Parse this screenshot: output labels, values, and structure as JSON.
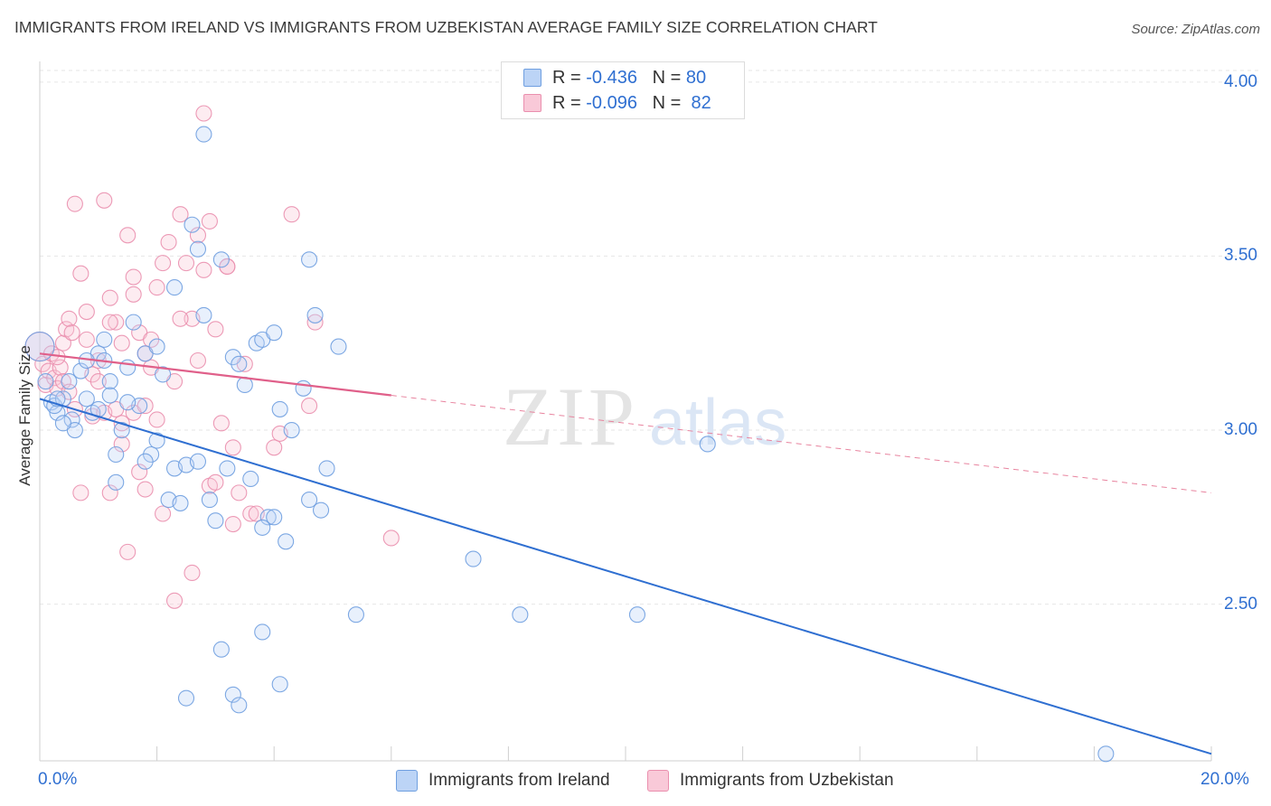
{
  "title": "IMMIGRANTS FROM IRELAND VS IMMIGRANTS FROM UZBEKISTAN AVERAGE FAMILY SIZE CORRELATION CHART",
  "source": "Source: ZipAtlas.com",
  "watermark": {
    "zip": "ZIP",
    "atlas": "atlas"
  },
  "legend": {
    "r_label": "R =",
    "n_label": "N =",
    "rows": [
      {
        "r": "-0.436",
        "n": "80",
        "color": "#6f9fe0"
      },
      {
        "r": "-0.096",
        "n": "82",
        "color": "#ea8fae"
      }
    ]
  },
  "chart_data": {
    "type": "scatter",
    "title": "IMMIGRANTS FROM IRELAND VS IMMIGRANTS FROM UZBEKISTAN AVERAGE FAMILY SIZE CORRELATION CHART",
    "xlabel": "",
    "ylabel": "Average Family Size",
    "xlim": [
      0,
      20
    ],
    "ylim": [
      2.05,
      4.08
    ],
    "x_tick_labels": [
      "0.0%",
      "20.0%"
    ],
    "y_ticks": [
      2.5,
      3.0,
      3.5,
      4.0
    ],
    "y_tick_labels": [
      "2.50",
      "3.00",
      "3.50",
      "4.00"
    ],
    "grid": true,
    "legend_position": "bottom",
    "series": [
      {
        "name": "Immigrants from Ireland",
        "color": "#6f9fe0",
        "trend": {
          "x": [
            0.0,
            20.0
          ],
          "y": [
            3.09,
            2.07
          ]
        },
        "points": [
          [
            0.0,
            3.24
          ],
          [
            0.1,
            3.14
          ],
          [
            0.2,
            3.08
          ],
          [
            0.3,
            3.05
          ],
          [
            0.25,
            3.07
          ],
          [
            0.4,
            3.09
          ],
          [
            0.5,
            3.14
          ],
          [
            0.55,
            3.03
          ],
          [
            0.7,
            3.17
          ],
          [
            0.8,
            3.09
          ],
          [
            0.9,
            3.05
          ],
          [
            1.0,
            3.22
          ],
          [
            1.1,
            3.2
          ],
          [
            1.2,
            3.14
          ],
          [
            1.3,
            2.93
          ],
          [
            1.4,
            3.0
          ],
          [
            1.5,
            3.18
          ],
          [
            1.6,
            3.31
          ],
          [
            1.7,
            3.07
          ],
          [
            1.8,
            3.22
          ],
          [
            1.9,
            2.93
          ],
          [
            2.0,
            2.97
          ],
          [
            2.1,
            3.16
          ],
          [
            2.2,
            2.8
          ],
          [
            2.3,
            2.89
          ],
          [
            2.4,
            2.79
          ],
          [
            2.5,
            2.9
          ],
          [
            2.6,
            3.59
          ],
          [
            2.7,
            3.52
          ],
          [
            2.8,
            3.33
          ],
          [
            2.9,
            2.8
          ],
          [
            3.0,
            2.74
          ],
          [
            3.1,
            3.49
          ],
          [
            3.2,
            2.89
          ],
          [
            3.3,
            3.21
          ],
          [
            3.4,
            3.19
          ],
          [
            3.5,
            3.13
          ],
          [
            3.6,
            2.86
          ],
          [
            3.7,
            3.25
          ],
          [
            3.8,
            3.26
          ],
          [
            3.9,
            2.75
          ],
          [
            4.0,
            3.28
          ],
          [
            4.1,
            3.06
          ],
          [
            4.3,
            3.0
          ],
          [
            4.5,
            3.12
          ],
          [
            4.6,
            2.8
          ],
          [
            4.7,
            3.33
          ],
          [
            4.8,
            2.77
          ],
          [
            4.9,
            2.89
          ],
          [
            5.1,
            3.24
          ],
          [
            1.3,
            2.85
          ],
          [
            2.7,
            2.91
          ],
          [
            1.8,
            2.91
          ],
          [
            2.3,
            3.41
          ],
          [
            0.6,
            3.0
          ],
          [
            3.8,
            2.72
          ],
          [
            4.2,
            2.68
          ],
          [
            2.0,
            3.24
          ],
          [
            1.0,
            3.06
          ],
          [
            0.3,
            3.09
          ],
          [
            1.5,
            3.08
          ],
          [
            2.8,
            3.85
          ],
          [
            4.6,
            3.49
          ],
          [
            1.1,
            3.26
          ],
          [
            5.4,
            2.47
          ],
          [
            8.2,
            2.47
          ],
          [
            10.2,
            2.47
          ],
          [
            11.4,
            2.96
          ],
          [
            7.4,
            2.63
          ],
          [
            3.1,
            2.37
          ],
          [
            3.3,
            2.24
          ],
          [
            3.4,
            2.21
          ],
          [
            3.8,
            2.42
          ],
          [
            4.1,
            2.27
          ],
          [
            2.5,
            2.23
          ],
          [
            18.2,
            2.07
          ],
          [
            4.0,
            2.75
          ],
          [
            0.8,
            3.2
          ],
          [
            1.2,
            3.1
          ],
          [
            0.4,
            3.02
          ]
        ]
      },
      {
        "name": "Immigrants from Uzbekistan",
        "color": "#ea8fae",
        "trend": {
          "x": [
            0.0,
            6.0
          ],
          "y": [
            3.22,
            3.1
          ]
        },
        "trend_extension": {
          "x": [
            6.0,
            20.0
          ],
          "y": [
            3.1,
            2.82
          ]
        },
        "points": [
          [
            0.0,
            3.24
          ],
          [
            0.05,
            3.19
          ],
          [
            0.1,
            3.13
          ],
          [
            0.15,
            3.17
          ],
          [
            0.2,
            3.22
          ],
          [
            0.25,
            3.15
          ],
          [
            0.3,
            3.12
          ],
          [
            0.35,
            3.18
          ],
          [
            0.4,
            3.25
          ],
          [
            0.45,
            3.29
          ],
          [
            0.5,
            3.32
          ],
          [
            0.55,
            3.28
          ],
          [
            0.6,
            3.65
          ],
          [
            0.7,
            3.45
          ],
          [
            0.8,
            3.34
          ],
          [
            0.9,
            3.16
          ],
          [
            1.0,
            3.2
          ],
          [
            1.1,
            3.66
          ],
          [
            1.2,
            3.38
          ],
          [
            1.3,
            3.31
          ],
          [
            1.4,
            3.25
          ],
          [
            1.5,
            3.56
          ],
          [
            1.6,
            3.44
          ],
          [
            1.7,
            3.28
          ],
          [
            1.8,
            3.22
          ],
          [
            1.9,
            3.18
          ],
          [
            2.0,
            3.41
          ],
          [
            2.1,
            3.48
          ],
          [
            2.2,
            3.54
          ],
          [
            2.3,
            3.14
          ],
          [
            2.4,
            3.62
          ],
          [
            2.5,
            3.48
          ],
          [
            2.6,
            3.32
          ],
          [
            2.7,
            3.2
          ],
          [
            2.8,
            3.46
          ],
          [
            2.9,
            3.6
          ],
          [
            3.0,
            3.29
          ],
          [
            3.1,
            3.02
          ],
          [
            3.2,
            3.47
          ],
          [
            3.3,
            2.95
          ],
          [
            3.4,
            2.82
          ],
          [
            3.5,
            3.19
          ],
          [
            3.6,
            2.76
          ],
          [
            3.7,
            2.76
          ],
          [
            4.0,
            2.95
          ],
          [
            4.1,
            2.99
          ],
          [
            4.3,
            3.62
          ],
          [
            4.6,
            3.07
          ],
          [
            4.7,
            3.31
          ],
          [
            1.2,
            2.82
          ],
          [
            1.5,
            2.65
          ],
          [
            1.7,
            2.88
          ],
          [
            1.8,
            2.83
          ],
          [
            2.1,
            2.76
          ],
          [
            2.3,
            2.51
          ],
          [
            2.6,
            2.59
          ],
          [
            2.9,
            2.84
          ],
          [
            3.3,
            2.73
          ],
          [
            6.0,
            2.69
          ],
          [
            0.7,
            2.82
          ],
          [
            0.6,
            3.06
          ],
          [
            0.9,
            3.04
          ],
          [
            1.1,
            3.05
          ],
          [
            1.3,
            3.06
          ],
          [
            1.4,
            3.02
          ],
          [
            1.6,
            3.05
          ],
          [
            1.8,
            3.07
          ],
          [
            2.0,
            3.03
          ],
          [
            0.4,
            3.14
          ],
          [
            1.0,
            3.14
          ],
          [
            1.4,
            2.96
          ],
          [
            3.0,
            2.85
          ],
          [
            2.4,
            3.32
          ],
          [
            3.2,
            3.47
          ],
          [
            2.8,
            3.91
          ],
          [
            1.9,
            3.26
          ],
          [
            1.2,
            3.31
          ],
          [
            0.8,
            3.26
          ],
          [
            0.5,
            3.11
          ],
          [
            0.3,
            3.21
          ],
          [
            1.6,
            3.39
          ],
          [
            2.7,
            3.56
          ]
        ]
      }
    ]
  },
  "bottom_legend": [
    {
      "label": "Immigrants from Ireland"
    },
    {
      "label": "Immigrants from Uzbekistan"
    }
  ]
}
